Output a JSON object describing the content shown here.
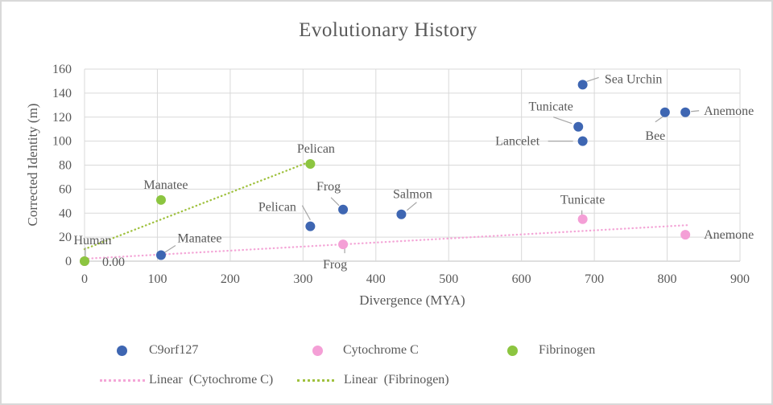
{
  "title": "Evolutionary History",
  "colors": {
    "text": "#595959",
    "grid": "#d9d9d9",
    "axis": "#bfbfbf",
    "leader": "#a6a6a6",
    "c9orf127": "#3e66b2",
    "cytochrome_c": "#f49fd6",
    "fibrinogen": "#8cc540",
    "linear_cytochrome_c": "#f4a6d7",
    "linear_fibrinogen": "#9fc13e"
  },
  "chart_data": {
    "type": "scatter",
    "title": "Evolutionary History",
    "xlabel": "Divergence (MYA)",
    "ylabel": "Corrected Identity (m)",
    "xlim": [
      0,
      900
    ],
    "xstep": 100,
    "ylim": [
      0,
      160
    ],
    "ystep": 20,
    "grid": true,
    "legend_position": "bottom",
    "text_color": "#595959",
    "grid_color": "#d9d9d9",
    "axis_color": "#bfbfbf",
    "leader_color": "#a6a6a6",
    "series": [
      {
        "name": "C9orf127",
        "color": "#3e66b2",
        "points": [
          {
            "x": 105,
            "y": 5,
            "label": "Manatee",
            "lx": 48,
            "ly": -21,
            "leader": [
              18,
              -12,
              4,
              -3
            ]
          },
          {
            "x": 310,
            "y": 29,
            "label": "Pelican",
            "lx": -41,
            "ly": -24,
            "leader": [
              -10,
              -26,
              0,
              -8
            ]
          },
          {
            "x": 355,
            "y": 43,
            "label": "Frog",
            "lx": -18,
            "ly": -29,
            "leader": [
              -15,
              -15,
              -5,
              -5
            ]
          },
          {
            "x": 435,
            "y": 39,
            "label": "Salmon",
            "lx": 14,
            "ly": -25,
            "leader": [
              19,
              -15,
              7,
              -5
            ]
          },
          {
            "x": 684,
            "y": 100,
            "label": "Lancelet",
            "lx": -81,
            "ly": 0,
            "leader": [
              -43,
              0,
              -12,
              0
            ]
          },
          {
            "x": 678,
            "y": 112,
            "label": "Tunicate",
            "lx": -34,
            "ly": -25,
            "leader": [
              -31,
              -12,
              -8,
              -4
            ]
          },
          {
            "x": 684,
            "y": 147,
            "label": "Sea Urchin",
            "lx": 63,
            "ly": -7,
            "leader": [
              20,
              -9,
              5,
              -4
            ]
          },
          {
            "x": 797,
            "y": 124,
            "label": "Bee",
            "lx": -12,
            "ly": 29,
            "leader": [
              -12,
              12,
              -2,
              5
            ]
          },
          {
            "x": 825,
            "y": 124,
            "label": "Anemone",
            "lx": 54,
            "ly": -2,
            "leader": [
              17,
              -2,
              7,
              -1
            ]
          }
        ]
      },
      {
        "name": "Cytochrome C",
        "color": "#f49fd6",
        "points": [
          {
            "x": 0,
            "y": 0,
            "label": "0.00",
            "lx": 36,
            "ly": 1
          },
          {
            "x": 355,
            "y": 14,
            "label": "Frog",
            "lx": -10,
            "ly": 25,
            "leader": [
              2,
              11,
              2,
              4
            ]
          },
          {
            "x": 684,
            "y": 35,
            "label": "Tunicate",
            "lx": 0,
            "ly": -24,
            "leader": [
              -1,
              -11,
              -1,
              -4
            ]
          },
          {
            "x": 825,
            "y": 22,
            "label": "Anemone",
            "lx": 54,
            "ly": 0
          }
        ]
      },
      {
        "name": "Fibrinogen",
        "color": "#8cc540",
        "points": [
          {
            "x": 0,
            "y": 0,
            "label": "Human",
            "lx": 10,
            "ly": -26,
            "leader": [
              1,
              -17,
              1,
              -6
            ]
          },
          {
            "x": 105,
            "y": 51,
            "label": "Manatee",
            "lx": 6,
            "ly": -19
          },
          {
            "x": 310,
            "y": 81,
            "label": "Pelican",
            "lx": 7,
            "ly": -19
          }
        ]
      }
    ],
    "trendlines": [
      {
        "name": "Linear  (Cytochrome C)",
        "color": "#f4a6d7",
        "x": [
          0,
          828
        ],
        "y": [
          2,
          30
        ]
      },
      {
        "name": "Linear  (Fibrinogen)",
        "color": "#9fc13e",
        "x": [
          0,
          314
        ],
        "y": [
          10,
          84
        ]
      }
    ]
  }
}
